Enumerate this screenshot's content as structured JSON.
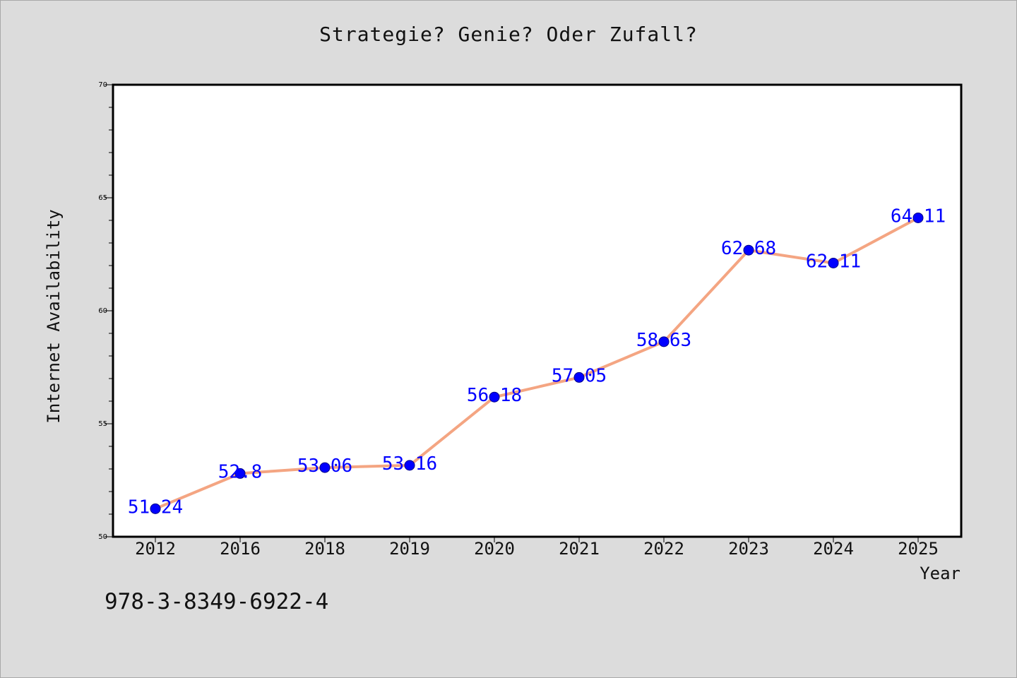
{
  "chart_data": {
    "type": "line",
    "title": "Strategie? Genie? Oder Zufall?",
    "xlabel": "Year",
    "ylabel": "Internet Availability",
    "categories": [
      "2012",
      "2016",
      "2018",
      "2019",
      "2020",
      "2021",
      "2022",
      "2023",
      "2024",
      "2025"
    ],
    "values": [
      51.24,
      52.8,
      53.06,
      53.16,
      56.18,
      57.05,
      58.63,
      62.68,
      62.11,
      64.11
    ],
    "data_labels": [
      "51.24",
      "52.8",
      "53.06",
      "53.16",
      "56.18",
      "57.05",
      "58.63",
      "62.68",
      "62.11",
      "64.11"
    ],
    "ylim": [
      50,
      70
    ],
    "yticks": [
      "50",
      "55",
      "60",
      "65",
      "70"
    ],
    "grid": false,
    "line_color": "#f4a582",
    "marker_color": "#0000ff",
    "label_color": "#0000ff"
  },
  "footer": {
    "isbn": "978-3-8349-6922-4"
  }
}
